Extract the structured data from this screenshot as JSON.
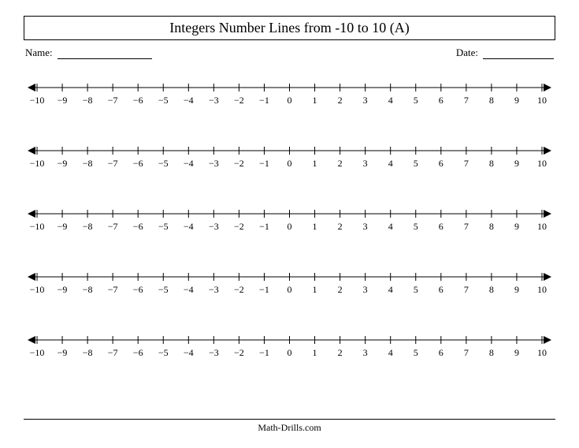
{
  "title": "Integers Number Lines from -10 to 10 (A)",
  "name_label": "Name:",
  "date_label": "Date:",
  "footer": "Math-Drills.com",
  "number_line": {
    "type": "number-line",
    "min": -10,
    "max": 10,
    "step": 1,
    "count": 5,
    "tick_labels": [
      "−10",
      "−9",
      "−8",
      "−7",
      "−6",
      "−5",
      "−4",
      "−3",
      "−2",
      "−1",
      "0",
      "1",
      "2",
      "3",
      "4",
      "5",
      "6",
      "7",
      "8",
      "9",
      "10"
    ],
    "line_color": "#000000",
    "tick_height": 5,
    "label_fontsize": 12,
    "arrow_size": 5
  },
  "colors": {
    "background": "#ffffff",
    "text": "#000000",
    "border": "#000000"
  }
}
